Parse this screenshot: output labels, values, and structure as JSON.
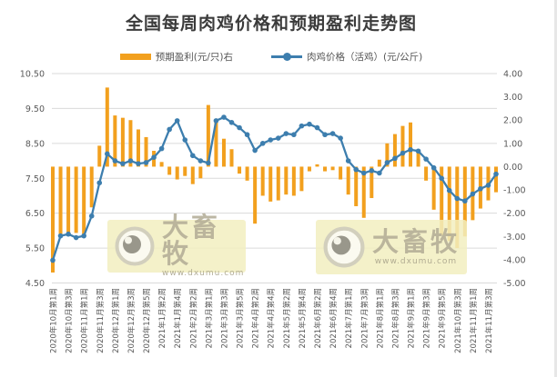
{
  "title": "全国每周肉鸡价格和预期盈利走势图",
  "legend": [
    {
      "label": "预期盈利(元/只)右",
      "type": "bar",
      "color": "#F2A01E"
    },
    {
      "label": "肉鸡价格（活鸡）(元/公斤)",
      "type": "line",
      "color": "#3D7EAE"
    }
  ],
  "watermark": {
    "name": "大畜牧",
    "url": "www.dxumu.com"
  },
  "colors": {
    "bar": "#F2A01E",
    "line": "#3D7EAE",
    "grid": "#DADADA",
    "axis_text": "#595959",
    "title_text": "#3B3B3B"
  },
  "chart_data": {
    "type": "combo",
    "title": "全国每周肉鸡价格和预期盈利走势图",
    "x_label_every": 2,
    "x_labels": [
      "2020年10月第1周",
      "2020年10月第3周",
      "2020年11月第1周",
      "2020年11月第3周",
      "2020年12月第1周",
      "2020年12月第3周",
      "2020年12月第5周",
      "2021年1月第2周",
      "2021年1月第4周",
      "2021年2月第2周",
      "2021年3月第1周",
      "2021年3月第3周",
      "2021年3月第5周",
      "2021年4月第2周",
      "2021年4月第4周",
      "2021年5月第2周",
      "2021年5月第4周",
      "2021年6月第2周",
      "2021年6月第4周",
      "2021年7月第1周",
      "2021年7月第3周",
      "2021年8月第1周",
      "2021年8月第3周",
      "2021年9月第1周",
      "2021年9月第3周",
      "2021年9月第5周",
      "2021年10月第3周",
      "2021年11月第1周",
      "2021年11月第3周"
    ],
    "y_left": {
      "min": 4.5,
      "max": 10.5,
      "ticks": [
        "10.50",
        "9.50",
        "8.50",
        "7.50",
        "6.50",
        "5.50",
        "4.50"
      ]
    },
    "y_right": {
      "min": -5.0,
      "max": 4.0,
      "ticks": [
        "4.00",
        "3.00",
        "2.00",
        "1.00",
        "0.00",
        "-1.00",
        "-2.00",
        "-3.00",
        "-4.00",
        "-5.00"
      ]
    },
    "grid": "horizontal gridlines at left-axis intervals",
    "legend_position": "top-center",
    "series": [
      {
        "name": "预期盈利(元/只)右",
        "type": "bar",
        "axis": "right",
        "color": "#F2A01E",
        "values": [
          -4.55,
          -2.9,
          -2.9,
          -2.85,
          -2.9,
          -1.75,
          0.9,
          3.4,
          2.2,
          2.1,
          2.0,
          1.6,
          1.27,
          0.68,
          0.2,
          -0.35,
          -0.55,
          -0.4,
          -0.75,
          -0.5,
          2.65,
          2.05,
          1.2,
          0.75,
          -0.3,
          -0.6,
          -2.45,
          -1.25,
          -1.5,
          -1.45,
          -1.2,
          -1.25,
          -1.05,
          -0.2,
          0.1,
          -0.2,
          -0.15,
          -0.55,
          -1.2,
          -1.7,
          -2.2,
          -1.35,
          0.3,
          1.0,
          1.4,
          1.75,
          1.9,
          0.7,
          -0.6,
          -1.85,
          -2.95,
          -3.2,
          -3.5,
          -3.0,
          -2.3,
          -1.8,
          -1.45,
          -1.1
        ]
      },
      {
        "name": "肉鸡价格（活鸡）(元/公斤)",
        "type": "line",
        "axis": "left",
        "color": "#3D7EAE",
        "values": [
          5.15,
          5.85,
          5.9,
          5.8,
          5.85,
          6.42,
          7.37,
          8.2,
          8.0,
          7.92,
          8.0,
          7.92,
          7.95,
          8.1,
          8.35,
          8.9,
          9.15,
          8.6,
          8.15,
          8.0,
          7.94,
          9.15,
          9.25,
          9.1,
          8.95,
          8.75,
          8.3,
          8.5,
          8.6,
          8.65,
          8.78,
          8.75,
          9.0,
          9.05,
          8.95,
          8.75,
          8.78,
          8.65,
          8.0,
          7.75,
          7.65,
          7.72,
          7.65,
          7.95,
          8.07,
          8.22,
          8.32,
          8.28,
          8.05,
          7.8,
          7.5,
          7.15,
          6.92,
          6.85,
          7.05,
          7.2,
          7.3,
          7.62
        ]
      }
    ]
  }
}
